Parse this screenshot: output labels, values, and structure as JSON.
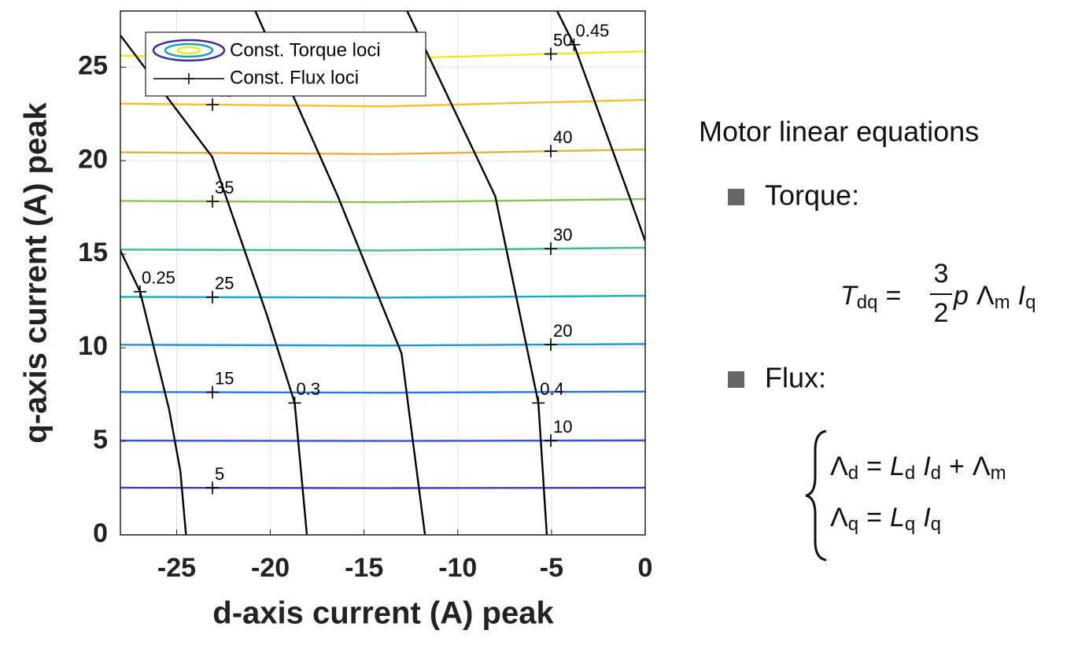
{
  "chart_data": {
    "type": "contour",
    "xlabel": "d-axis current (A) peak",
    "ylabel": "q-axis current (A) peak",
    "xlim": [
      -28,
      0
    ],
    "ylim": [
      0,
      28
    ],
    "xticks": [
      -25,
      -20,
      -15,
      -10,
      -5,
      0
    ],
    "yticks": [
      0,
      5,
      10,
      15,
      20,
      25
    ],
    "grid": true,
    "torque_loci": {
      "name": "Const. Torque loci",
      "lines": [
        {
          "level": 5,
          "color": "#3b3fc2",
          "x": [
            -28,
            -14,
            0
          ],
          "y": [
            2.52,
            2.5,
            2.52
          ]
        },
        {
          "level": 10,
          "color": "#3553de",
          "x": [
            -28,
            -14,
            0
          ],
          "y": [
            5.04,
            5.02,
            5.05
          ]
        },
        {
          "level": 15,
          "color": "#2b78e4",
          "x": [
            -28,
            -14,
            0
          ],
          "y": [
            7.64,
            7.6,
            7.66
          ]
        },
        {
          "level": 20,
          "color": "#1b98d6",
          "x": [
            -28,
            -14,
            0
          ],
          "y": [
            10.16,
            10.12,
            10.2
          ]
        },
        {
          "level": 25,
          "color": "#15acbc",
          "x": [
            -28,
            -14,
            0
          ],
          "y": [
            12.72,
            12.68,
            12.78
          ]
        },
        {
          "level": 30,
          "color": "#3dbd92",
          "x": [
            -28,
            -14,
            0
          ],
          "y": [
            15.25,
            15.2,
            15.35
          ]
        },
        {
          "level": 35,
          "color": "#8cc356",
          "x": [
            -28,
            -14,
            0
          ],
          "y": [
            17.85,
            17.78,
            17.95
          ]
        },
        {
          "level": 40,
          "color": "#dcb53c",
          "x": [
            -28,
            -14,
            0
          ],
          "y": [
            20.45,
            20.35,
            20.6
          ]
        },
        {
          "level": 45,
          "color": "#f4c02e",
          "x": [
            -28,
            -14,
            0
          ],
          "y": [
            23.05,
            22.9,
            23.25
          ]
        },
        {
          "level": 50,
          "color": "#f2ea1e",
          "x": [
            -28,
            -14,
            0
          ],
          "y": [
            25.6,
            25.45,
            25.85
          ]
        }
      ]
    },
    "flux_loci": {
      "name": "Const. Flux loci",
      "color": "#000000",
      "lines": [
        {
          "level": 0.25,
          "x": [
            -28,
            -26.95,
            -25.4,
            -24.8,
            -24.5
          ],
          "y": [
            15.2,
            13.0,
            6.7,
            3.4,
            0
          ]
        },
        {
          "level": 0.3,
          "x": [
            -28,
            -23.1,
            -20.2,
            -18.7,
            -18.05
          ],
          "y": [
            26.7,
            20.2,
            11.8,
            7.05,
            0
          ]
        },
        {
          "level": null,
          "x": [
            -20.8,
            -16.4,
            -13.0,
            -11.75
          ],
          "y": [
            28,
            18.1,
            9.7,
            0
          ]
        },
        {
          "level": 0.4,
          "x": [
            -12.7,
            -8.0,
            -5.7,
            -5.25
          ],
          "y": [
            28,
            18.1,
            7.05,
            0
          ]
        },
        {
          "level": 0.45,
          "x": [
            -4.7,
            -3.8,
            -0.85,
            0
          ],
          "y": [
            28,
            26.2,
            18.1,
            15.7
          ]
        }
      ]
    }
  },
  "panel": {
    "title": "Motor linear equations",
    "torque_label": "Torque:",
    "flux_label": "Flux:",
    "torque_equation": {
      "lhs": [
        {
          "text": "T",
          "italic": true,
          "sub": "dq"
        },
        {
          "text": "="
        }
      ],
      "numerator": "3",
      "denominator": "2",
      "rhs": [
        {
          "text": "p",
          "italic": true
        },
        {
          "text": "Λ",
          "sub": "m"
        },
        {
          "text": "I",
          "italic": true,
          "sub": "q"
        }
      ]
    },
    "flux_equations": [
      [
        {
          "text": "Λ",
          "sub": "d"
        },
        {
          "text": "="
        },
        {
          "text": "L",
          "italic": true,
          "sub": "d"
        },
        {
          "text": "I",
          "italic": true,
          "sub": "d"
        },
        {
          "text": "+"
        },
        {
          "text": "Λ",
          "sub": "m"
        }
      ],
      [
        {
          "text": "Λ",
          "sub": "q"
        },
        {
          "text": "="
        },
        {
          "text": "L",
          "italic": true,
          "sub": "q"
        },
        {
          "text": "I",
          "italic": true,
          "sub": "q"
        }
      ]
    ]
  }
}
